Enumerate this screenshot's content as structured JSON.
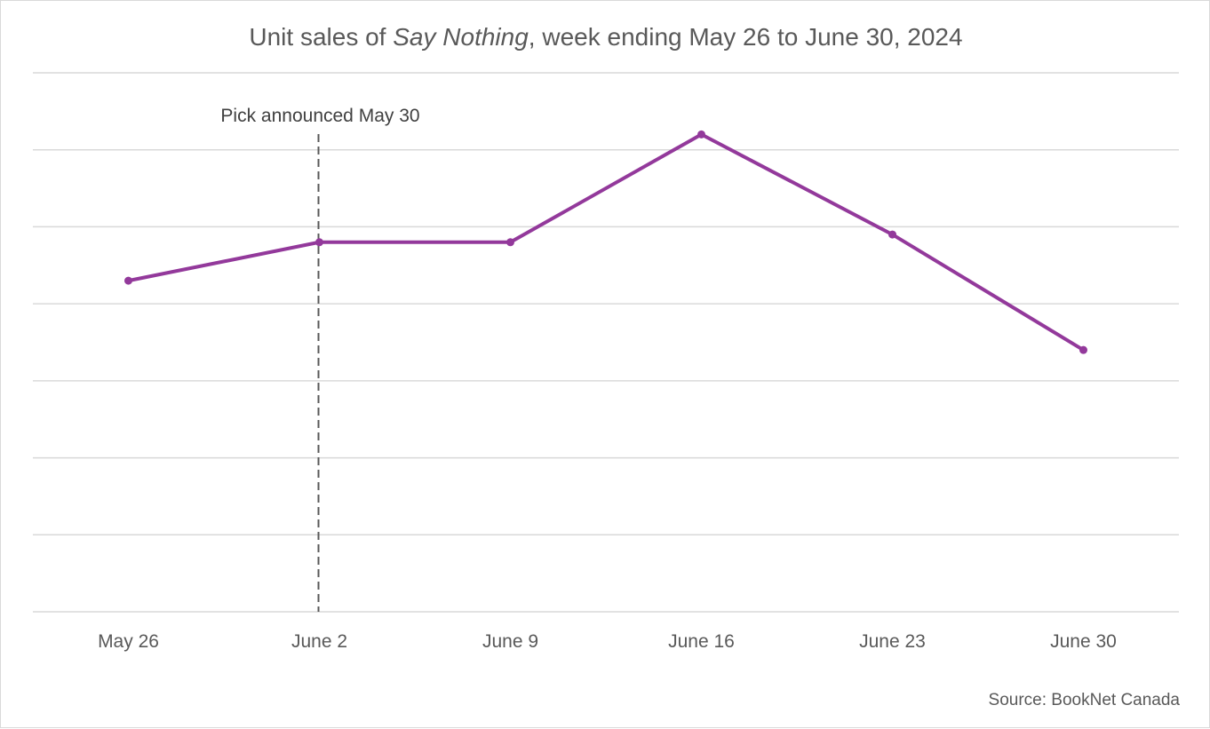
{
  "chart_data": {
    "type": "line",
    "title": {
      "prefix": "Unit sales of ",
      "emphasis": "Say Nothing",
      "suffix": ", week ending May 26 to June 30, 2024"
    },
    "xlabel": "",
    "ylabel": "",
    "categories": [
      "May 26",
      "June 2",
      "June 9",
      "June 16",
      "June 23",
      "June 30"
    ],
    "series": [
      {
        "values": [
          43,
          48,
          48,
          62,
          49,
          34
        ],
        "color": "#93399b"
      }
    ],
    "ylim": [
      0,
      70
    ],
    "y_tick_labels_shown": false,
    "grid": true,
    "grid_color": "#d9d9d9",
    "annotation": {
      "text": "Pick announced May 30",
      "x_category": "June 2",
      "style": "dashed-vertical-line",
      "color": "#595959"
    },
    "source": "Source: BookNet Canada"
  }
}
